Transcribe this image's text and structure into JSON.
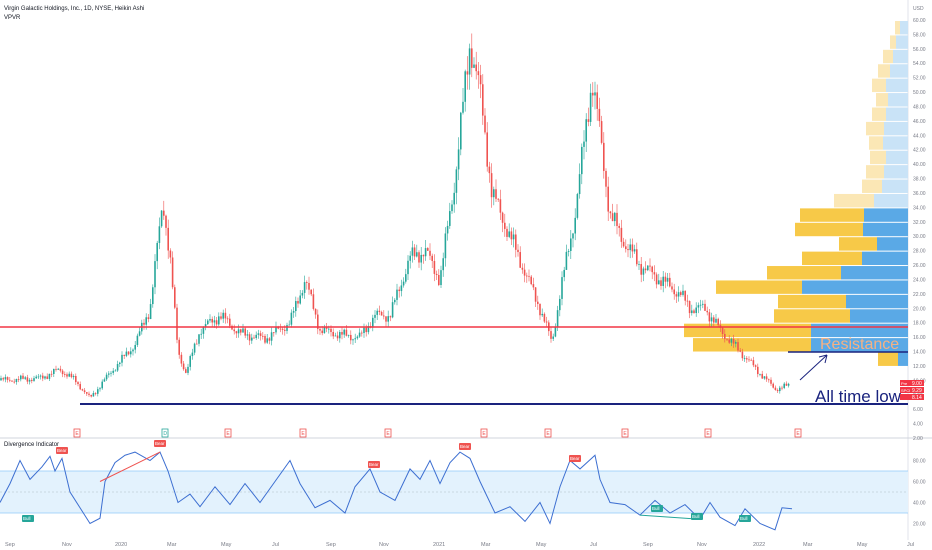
{
  "header": {
    "symbol_line": "Virgin Galactic Holdings, Inc., 1D, NYSE, Heikin Ashi",
    "indicator": "VPVR",
    "currency": "USD"
  },
  "price_axis": {
    "ticks": [
      "60.00",
      "58.00",
      "56.00",
      "54.00",
      "52.00",
      "50.00",
      "48.00",
      "46.00",
      "44.00",
      "42.00",
      "40.00",
      "38.00",
      "36.00",
      "34.00",
      "32.00",
      "30.00",
      "28.00",
      "26.00",
      "24.00",
      "22.00",
      "20.00",
      "18.00",
      "16.00",
      "14.00",
      "12.00",
      "10.00",
      "8.00",
      "6.00",
      "4.00",
      "2.00"
    ]
  },
  "price_badges": [
    {
      "label": "Pre",
      "value": "9.00",
      "color": "#f23645"
    },
    {
      "label": "SPCE",
      "value": "9.29",
      "color": "#f23645"
    },
    {
      "label": "",
      "value": "8.14",
      "color": "#f23645"
    }
  ],
  "annotations": {
    "resistance": "Resistance",
    "atl": "All time low"
  },
  "oscillator": {
    "title": "Divergence Indicator",
    "ticks": [
      "80.00",
      "60.00",
      "40.00",
      "20.00"
    ],
    "labels": [
      {
        "text": "Bear",
        "type": "bear"
      },
      {
        "text": "Bear",
        "type": "bear"
      },
      {
        "text": "Bear",
        "type": "bear"
      },
      {
        "text": "Bear",
        "type": "bear"
      },
      {
        "text": "Bear",
        "type": "bear"
      },
      {
        "text": "Bull",
        "type": "bull"
      },
      {
        "text": "Bull",
        "type": "bull"
      },
      {
        "text": "Bull",
        "type": "bull"
      },
      {
        "text": "Bull",
        "type": "bull"
      }
    ]
  },
  "time_axis": [
    "Sep",
    "Nov",
    "2020",
    "Mar",
    "May",
    "Jul",
    "Sep",
    "Nov",
    "2021",
    "Mar",
    "May",
    "Jul",
    "Sep",
    "Nov",
    "2022",
    "Mar",
    "May",
    "Jul"
  ],
  "events": [
    "E",
    "D",
    "E",
    "E",
    "E",
    "E",
    "E",
    "E",
    "E",
    "E"
  ],
  "colors": {
    "up": "#26a69a",
    "down": "#ef5350",
    "resistance": "#f23645",
    "support": "#1a237e",
    "vp_up": "#5aa9e6",
    "vp_down": "#f7c948",
    "osc_line": "#3d6fd1"
  },
  "chart_data": {
    "type": "candlestick",
    "title": "Virgin Galactic Holdings, Inc., 1D, NYSE, Heikin Ashi",
    "ylim": [
      2,
      62
    ],
    "ylabel": "USD",
    "key_points": {
      "x": [
        "Sep",
        "Oct",
        "Nov",
        "Dec",
        "2020",
        "Feb",
        "Mar",
        "Apr",
        "May",
        "Jun",
        "Jul",
        "Aug",
        "Sep",
        "Oct",
        "Nov",
        "Dec",
        "2021",
        "Feb",
        "Mar",
        "Apr",
        "May",
        "Jun",
        "Jul",
        "Aug",
        "Sep",
        "Oct",
        "Nov",
        "Dec",
        "2022",
        "Feb"
      ],
      "close": [
        10,
        10.3,
        11.5,
        7.5,
        14,
        24,
        35,
        12.5,
        17,
        16,
        15.5,
        16.5,
        15.5,
        16.5,
        17,
        20,
        26,
        57,
        36,
        29,
        15,
        36,
        52,
        31,
        25,
        24,
        20,
        14,
        9,
        9.3
      ]
    },
    "horizontal_lines": [
      {
        "label": "Resistance",
        "value": 17.5
      },
      {
        "label": "All time low",
        "value": 6.9
      }
    ],
    "oscillator": {
      "name": "Divergence Indicator",
      "ylim": [
        10,
        90
      ],
      "band": [
        30,
        70
      ],
      "midline": 50
    }
  }
}
